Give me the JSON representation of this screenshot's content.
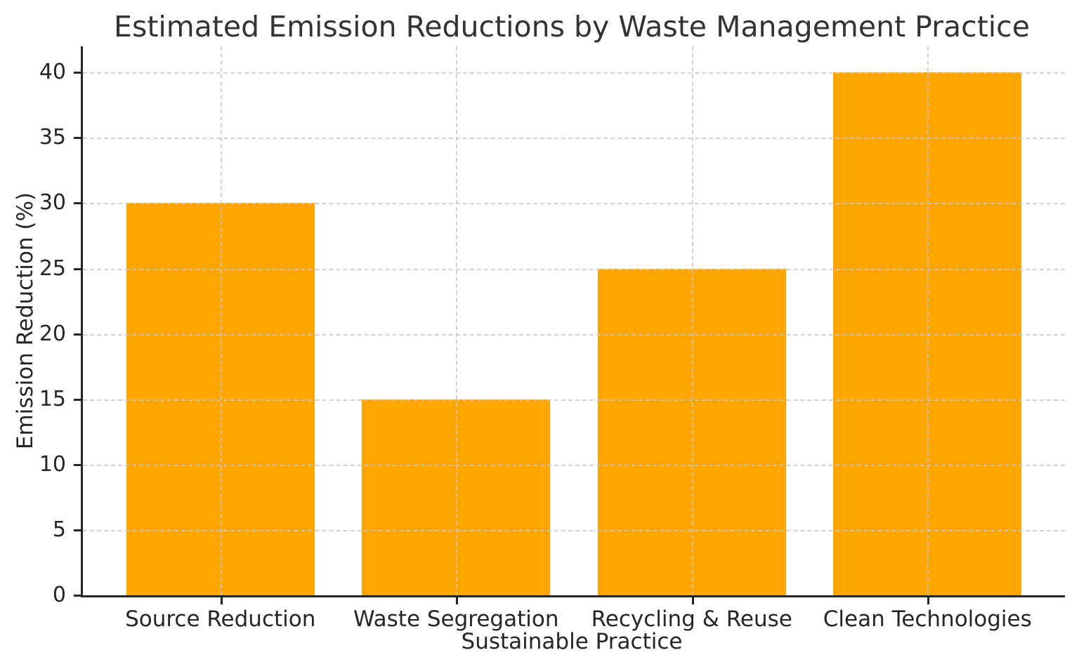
{
  "chart_data": {
    "type": "bar",
    "title": "Estimated Emission Reductions by Waste Management Practice",
    "xlabel": "Sustainable Practice",
    "ylabel": "Emission Reduction (%)",
    "categories": [
      "Source Reduction",
      "Waste Segregation",
      "Recycling & Reuse",
      "Clean Technologies"
    ],
    "values": [
      30,
      15,
      25,
      40
    ],
    "yticks": [
      0,
      5,
      10,
      15,
      20,
      25,
      30,
      35,
      40
    ],
    "ylim": [
      0,
      42
    ],
    "bar_color": "#FFA500",
    "grid": "dashed, horizontal and vertical, drawn over bars",
    "legend_position": "none",
    "spines": "left and bottom only"
  }
}
